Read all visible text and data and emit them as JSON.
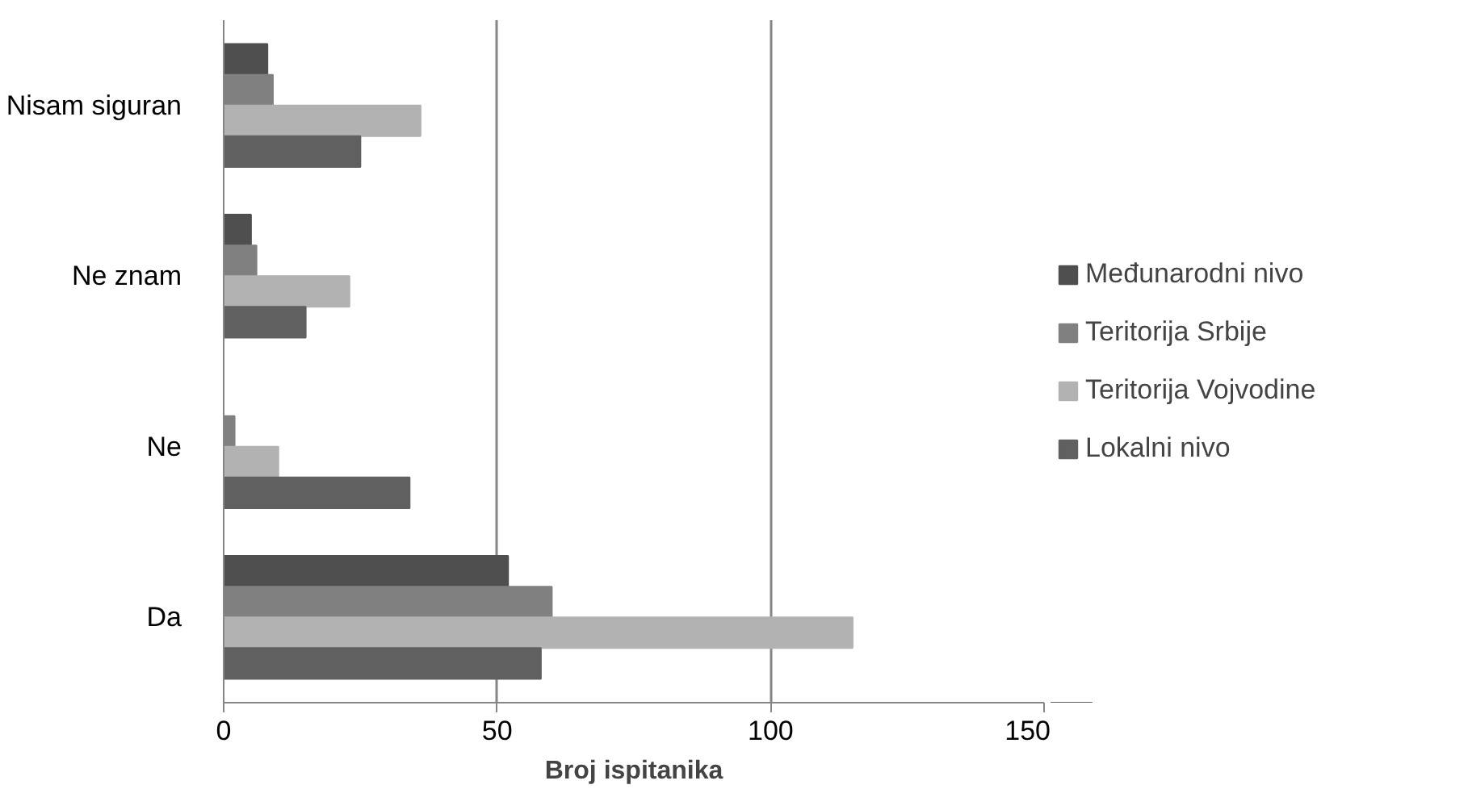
{
  "chart_data": {
    "type": "bar",
    "orientation": "horizontal",
    "xlabel": "Broj ispitanika",
    "categories": [
      "Nisam siguran",
      "Ne znam",
      "Ne",
      "Da"
    ],
    "series": [
      {
        "name": "Međunarodni nivo",
        "color": "#4f4f4f",
        "values": [
          8,
          5,
          0,
          52
        ]
      },
      {
        "name": "Teritorija Srbije",
        "color": "#808080",
        "values": [
          9,
          6,
          2,
          60
        ]
      },
      {
        "name": "Teritorija Vojvodine",
        "color": "#b2b2b2",
        "values": [
          36,
          23,
          10,
          115
        ]
      },
      {
        "name": "Lokalni nivo",
        "color": "#606060",
        "values": [
          25,
          15,
          34,
          58
        ]
      }
    ],
    "xlim": [
      0,
      150
    ],
    "xticks": [
      0,
      50,
      100,
      150
    ],
    "grid": "x",
    "legend": "right"
  }
}
